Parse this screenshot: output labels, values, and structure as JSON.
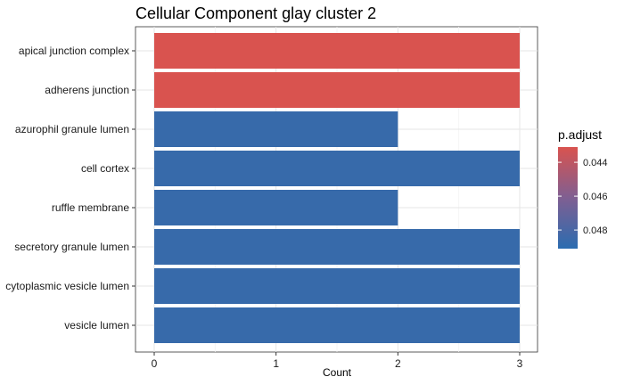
{
  "chart_data": {
    "type": "bar",
    "orientation": "horizontal",
    "title": "Cellular Component glay cluster 2",
    "xlabel": "Count",
    "ylabel": "",
    "xlim": [
      0,
      3
    ],
    "x_ticks": [
      "0",
      "1",
      "2",
      "3"
    ],
    "grid": true,
    "categories": [
      "apical junction complex",
      "adherens junction",
      "azurophil granule lumen",
      "cell cortex",
      "ruffle membrane",
      "secretory granule lumen",
      "cytoplasmic vesicle lumen",
      "vesicle lumen"
    ],
    "values": [
      3,
      3,
      2,
      3,
      2,
      3,
      3,
      3
    ],
    "p_adjust": [
      0.0431,
      0.0431,
      0.0487,
      0.0487,
      0.0487,
      0.0487,
      0.0487,
      0.0487
    ],
    "colors": {
      "low": "#d9534f",
      "high": "#2b6cb0"
    },
    "legend": {
      "title": "p.adjust",
      "position": "right",
      "labels": [
        "0.044",
        "0.046",
        "0.048"
      ],
      "label_values": [
        0.044,
        0.046,
        0.048
      ],
      "range": [
        0.0431,
        0.0491
      ]
    }
  }
}
